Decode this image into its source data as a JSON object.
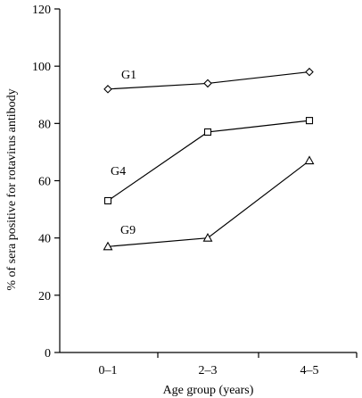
{
  "chart_data": {
    "type": "line",
    "title": "",
    "xlabel": "Age group (years)",
    "ylabel": "% of sera positive for rotavirus antibody",
    "categories": [
      "0–1",
      "2–3",
      "4–5"
    ],
    "ylim": [
      0,
      120
    ],
    "yticks": [
      0,
      20,
      40,
      60,
      80,
      100,
      120
    ],
    "grid": false,
    "legend": "none",
    "series": [
      {
        "name": "G1",
        "marker": "diamond",
        "values": [
          92,
          94,
          98
        ]
      },
      {
        "name": "G4",
        "marker": "square",
        "values": [
          53,
          77,
          81
        ]
      },
      {
        "name": "G9",
        "marker": "triangle",
        "values": [
          37,
          40,
          67
        ]
      }
    ],
    "colors": {
      "line": "#000000",
      "marker_fill": "#ffffff"
    }
  }
}
